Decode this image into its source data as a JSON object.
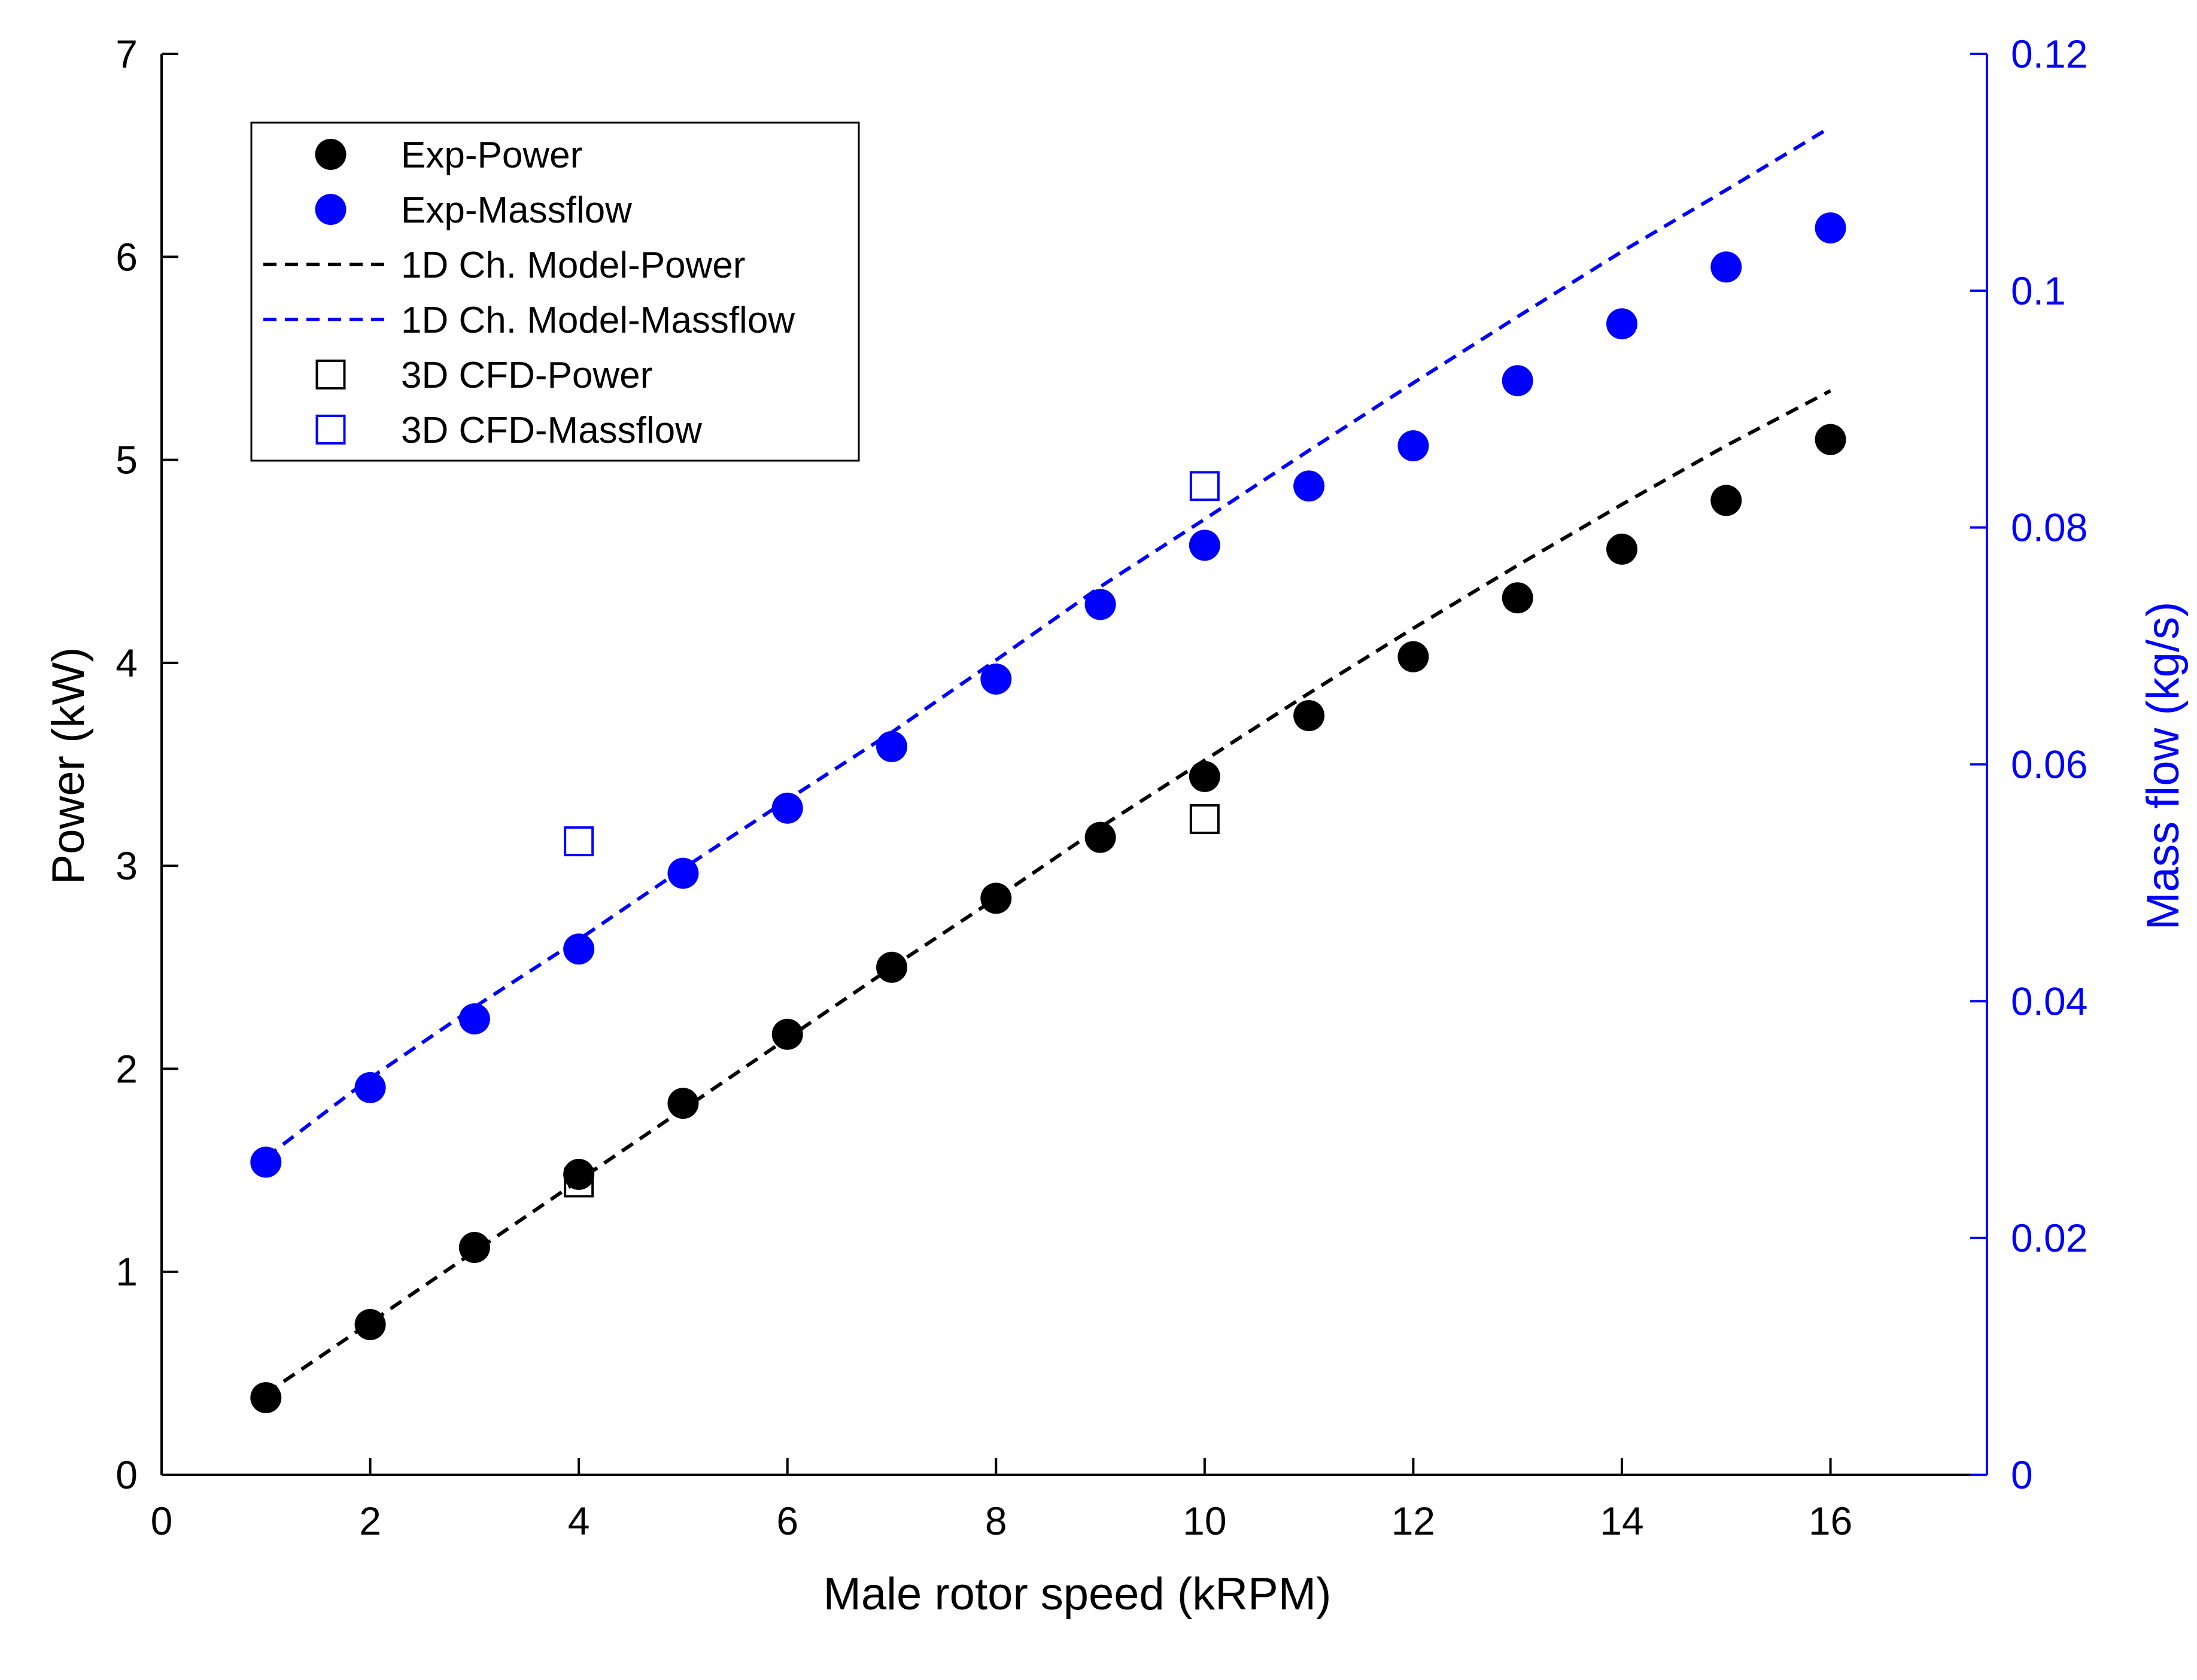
{
  "chart_data": {
    "type": "scatter",
    "title": "",
    "xlabel": "Male rotor speed (kRPM)",
    "ylabel_left": "Power (kW)",
    "ylabel_right": "Mass flow (kg/s)",
    "xlim": [
      0,
      17.5
    ],
    "ylim_left": [
      0,
      7
    ],
    "ylim_right": [
      0,
      0.12
    ],
    "x_ticks": [
      "0",
      "2",
      "4",
      "6",
      "8",
      "10",
      "12",
      "14",
      "16"
    ],
    "y_left_ticks": [
      "0",
      "1",
      "2",
      "3",
      "4",
      "5",
      "6",
      "7"
    ],
    "y_right_ticks": [
      "0",
      "0.02",
      "0.04",
      "0.06",
      "0.08",
      "0.1",
      "0.12"
    ],
    "grid": false,
    "legend_position": "top-left",
    "colors": {
      "black": "#000000",
      "blue": "#0000ff"
    },
    "series": [
      {
        "name": "Exp-Power",
        "axis": "left",
        "style": "filled-circle",
        "color": "#000000",
        "x": [
          1,
          2,
          3,
          4,
          5,
          6,
          7,
          8,
          9,
          10,
          11,
          12,
          13,
          14,
          15,
          16
        ],
        "values": [
          0.38,
          0.74,
          1.12,
          1.48,
          1.83,
          2.17,
          2.5,
          2.84,
          3.14,
          3.44,
          3.74,
          4.03,
          4.32,
          4.56,
          4.8,
          5.1
        ]
      },
      {
        "name": "Exp-Massflow",
        "axis": "right",
        "style": "filled-circle",
        "color": "#0000ff",
        "x": [
          1,
          2,
          3,
          4,
          5,
          6,
          7,
          8,
          9,
          10,
          11,
          12,
          13,
          14,
          15,
          16
        ],
        "values": [
          0.0264,
          0.0327,
          0.0385,
          0.0444,
          0.0508,
          0.0563,
          0.0615,
          0.0672,
          0.0735,
          0.0785,
          0.0835,
          0.0869,
          0.0924,
          0.0972,
          0.102,
          0.1053
        ]
      },
      {
        "name": "1D Ch. Model-Power",
        "axis": "left",
        "style": "dashed-line",
        "color": "#000000",
        "x": [
          1,
          2,
          3,
          4,
          5,
          6,
          7,
          8,
          9,
          10,
          11,
          12,
          13,
          14,
          15,
          16
        ],
        "values": [
          0.4,
          0.75,
          1.1,
          1.45,
          1.8,
          2.15,
          2.5,
          2.84,
          3.19,
          3.52,
          3.85,
          4.17,
          4.48,
          4.78,
          5.07,
          5.34
        ]
      },
      {
        "name": "1D Ch. Model-Massflow",
        "axis": "right",
        "style": "dashed-line",
        "color": "#0000ff",
        "x": [
          1,
          2,
          3,
          4,
          5,
          6,
          7,
          8,
          9,
          10,
          11,
          12,
          13,
          14,
          15,
          16
        ],
        "values": [
          0.0268,
          0.0335,
          0.0395,
          0.0452,
          0.0512,
          0.057,
          0.0627,
          0.0688,
          0.075,
          0.0807,
          0.0865,
          0.0922,
          0.0978,
          0.1033,
          0.1085,
          0.1138
        ]
      },
      {
        "name": "3D CFD-Power",
        "axis": "left",
        "style": "open-square",
        "color": "#000000",
        "x": [
          4,
          10
        ],
        "values": [
          1.44,
          3.23
        ]
      },
      {
        "name": "3D CFD-Massflow",
        "axis": "right",
        "style": "open-square",
        "color": "#0000ff",
        "x": [
          4,
          10
        ],
        "values": [
          0.0535,
          0.0835
        ]
      }
    ]
  }
}
